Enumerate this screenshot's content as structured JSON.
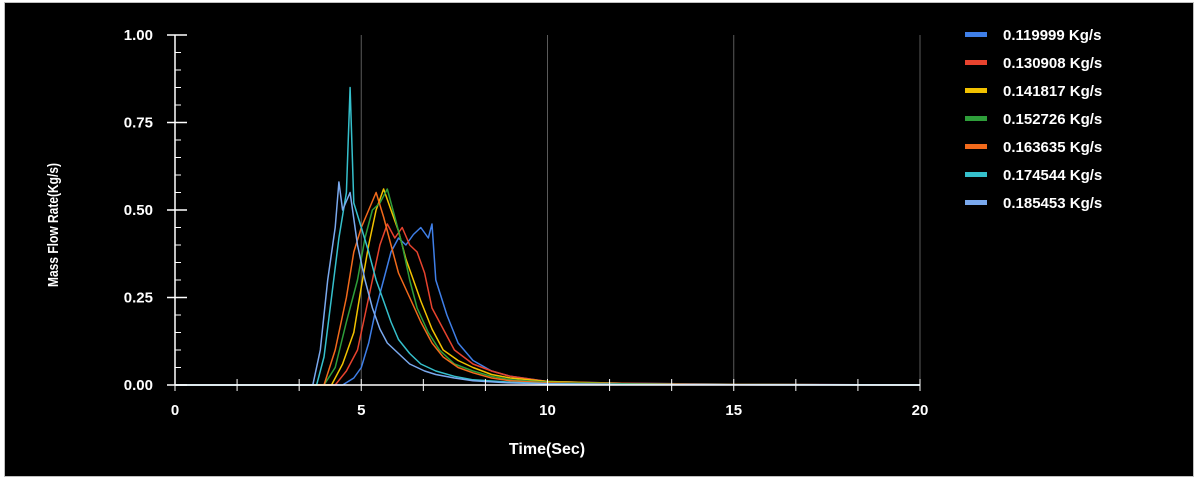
{
  "chart_data": {
    "type": "line",
    "xlabel": "Time(Sec)",
    "ylabel": "Mass Flow Rate(Kg/s)",
    "xlim": [
      0,
      20
    ],
    "ylim": [
      0,
      1
    ],
    "xticks": [
      0,
      5,
      10,
      15,
      20
    ],
    "xtick_labels": [
      "0",
      "5",
      "10",
      "15",
      "20"
    ],
    "yticks": [
      0,
      0.25,
      0.5,
      0.75,
      1.0
    ],
    "ytick_labels": [
      "0.00",
      "0.25",
      "0.50",
      "0.75",
      "1.00"
    ],
    "grid": "vertical",
    "legend_position": "right",
    "series": [
      {
        "name": "0.119999 Kg/s",
        "color": "#3f7fe8",
        "x": [
          0,
          4.5,
          4.8,
          5.0,
          5.2,
          5.4,
          5.6,
          5.8,
          6.0,
          6.2,
          6.4,
          6.6,
          6.8,
          6.9,
          7.0,
          7.3,
          7.6,
          8.0,
          8.5,
          9.0,
          10.0,
          12.0,
          15.0,
          20.0
        ],
        "y": [
          0,
          0,
          0.02,
          0.05,
          0.12,
          0.22,
          0.3,
          0.38,
          0.42,
          0.4,
          0.43,
          0.45,
          0.42,
          0.46,
          0.3,
          0.2,
          0.12,
          0.07,
          0.04,
          0.025,
          0.01,
          0.005,
          0.002,
          0
        ]
      },
      {
        "name": "0.130908 Kg/s",
        "color": "#e8432e",
        "x": [
          0,
          4.3,
          4.6,
          4.9,
          5.1,
          5.3,
          5.5,
          5.7,
          5.9,
          6.1,
          6.3,
          6.5,
          6.7,
          6.9,
          7.2,
          7.5,
          8.0,
          8.5,
          9.0,
          10.0,
          12.0,
          15.0,
          20.0
        ],
        "y": [
          0,
          0,
          0.04,
          0.1,
          0.2,
          0.3,
          0.4,
          0.46,
          0.42,
          0.45,
          0.4,
          0.38,
          0.32,
          0.22,
          0.16,
          0.1,
          0.06,
          0.04,
          0.025,
          0.01,
          0.005,
          0.002,
          0
        ]
      },
      {
        "name": "0.141817 Kg/s",
        "color": "#f2c200",
        "x": [
          0,
          4.2,
          4.5,
          4.8,
          5.0,
          5.2,
          5.4,
          5.6,
          5.8,
          6.0,
          6.2,
          6.4,
          6.6,
          6.9,
          7.2,
          7.6,
          8.0,
          8.5,
          9.0,
          10.0,
          12.0,
          15.0,
          20.0
        ],
        "y": [
          0,
          0,
          0.06,
          0.15,
          0.28,
          0.4,
          0.5,
          0.56,
          0.5,
          0.44,
          0.36,
          0.3,
          0.24,
          0.16,
          0.1,
          0.07,
          0.05,
          0.03,
          0.02,
          0.01,
          0.004,
          0.001,
          0
        ]
      },
      {
        "name": "0.152726 Kg/s",
        "color": "#2e9e3a",
        "x": [
          0,
          4.0,
          4.3,
          4.6,
          4.9,
          5.1,
          5.3,
          5.5,
          5.7,
          5.9,
          6.1,
          6.3,
          6.5,
          6.8,
          7.1,
          7.5,
          8.0,
          8.5,
          9.0,
          10.0,
          12.0,
          15.0,
          20.0
        ],
        "y": [
          0,
          0,
          0.05,
          0.18,
          0.3,
          0.42,
          0.5,
          0.52,
          0.56,
          0.48,
          0.4,
          0.3,
          0.22,
          0.15,
          0.1,
          0.06,
          0.04,
          0.025,
          0.015,
          0.008,
          0.003,
          0.001,
          0
        ]
      },
      {
        "name": "0.163635 Kg/s",
        "color": "#f26a1b",
        "x": [
          0,
          4.0,
          4.3,
          4.6,
          4.8,
          5.0,
          5.2,
          5.4,
          5.6,
          5.8,
          6.0,
          6.3,
          6.6,
          6.9,
          7.2,
          7.6,
          8.0,
          8.5,
          9.0,
          10.0,
          12.0,
          15.0,
          20.0
        ],
        "y": [
          0,
          0,
          0.1,
          0.25,
          0.38,
          0.45,
          0.5,
          0.55,
          0.48,
          0.4,
          0.32,
          0.25,
          0.18,
          0.12,
          0.08,
          0.05,
          0.035,
          0.02,
          0.012,
          0.006,
          0.002,
          0.001,
          0
        ]
      },
      {
        "name": "0.174544 Kg/s",
        "color": "#35c0cc",
        "x": [
          0,
          3.8,
          4.0,
          4.2,
          4.4,
          4.6,
          4.7,
          4.8,
          5.0,
          5.2,
          5.4,
          5.6,
          5.8,
          6.0,
          6.3,
          6.6,
          7.0,
          7.5,
          8.0,
          9.0,
          10.0,
          12.0,
          15.0,
          20.0
        ],
        "y": [
          0,
          0,
          0.08,
          0.25,
          0.42,
          0.55,
          0.85,
          0.52,
          0.45,
          0.38,
          0.3,
          0.24,
          0.18,
          0.13,
          0.09,
          0.06,
          0.04,
          0.025,
          0.015,
          0.008,
          0.004,
          0.002,
          0.001,
          0
        ]
      },
      {
        "name": "0.185453 Kg/s",
        "color": "#7aa9ee",
        "x": [
          0,
          3.7,
          3.9,
          4.1,
          4.3,
          4.4,
          4.5,
          4.7,
          4.9,
          5.1,
          5.3,
          5.5,
          5.7,
          6.0,
          6.3,
          6.7,
          7.0,
          7.5,
          8.0,
          9.0,
          10.0,
          12.0,
          15.0,
          20.0
        ],
        "y": [
          0,
          0,
          0.1,
          0.3,
          0.45,
          0.58,
          0.5,
          0.55,
          0.4,
          0.3,
          0.22,
          0.16,
          0.12,
          0.09,
          0.06,
          0.04,
          0.03,
          0.02,
          0.012,
          0.006,
          0.003,
          0.001,
          0.0005,
          0
        ]
      }
    ]
  }
}
